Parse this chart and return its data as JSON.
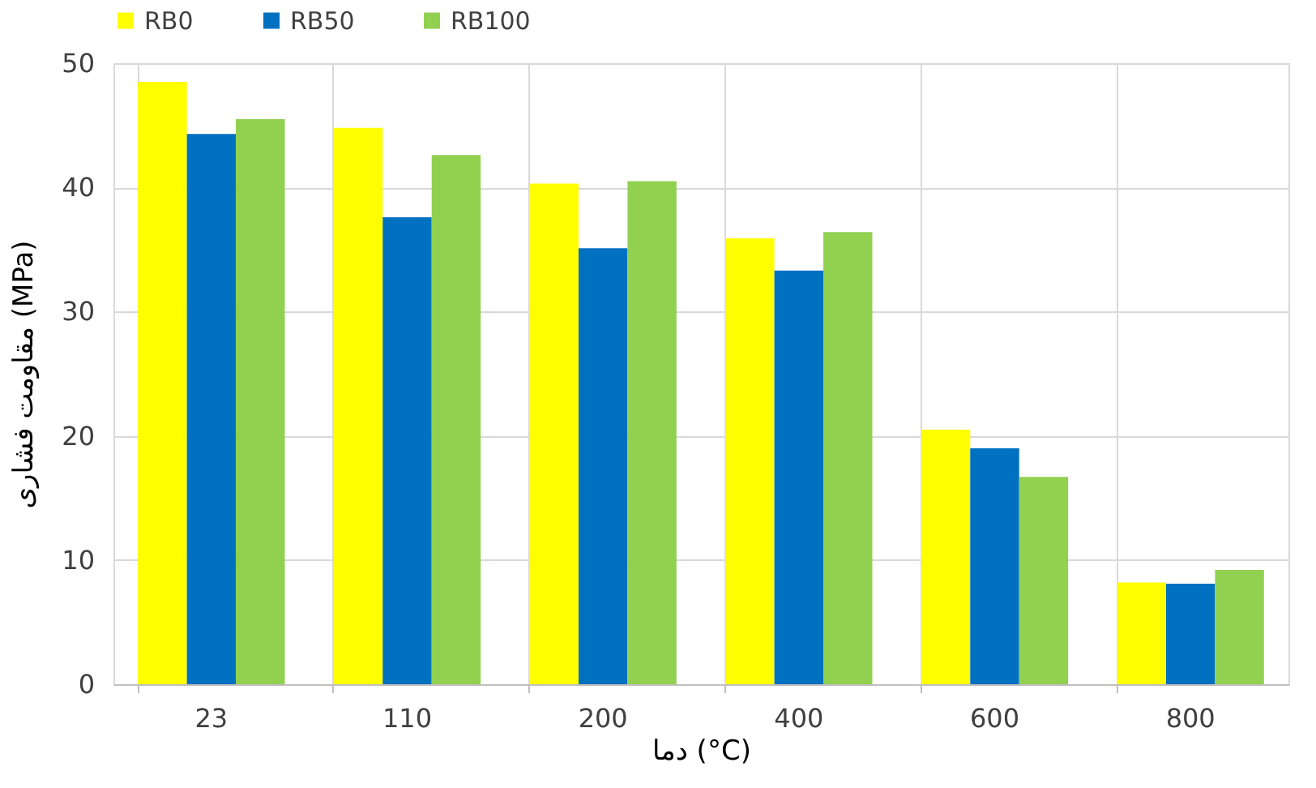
{
  "chart_data": {
    "type": "bar",
    "xlabel": "دما (°C)",
    "ylabel": "مقاومت فشاری (MPa)",
    "categories": [
      "23",
      "110",
      "200",
      "400",
      "600",
      "800"
    ],
    "series": [
      {
        "name": "RB0",
        "color": "#ffff00",
        "values": [
          48.5,
          44.8,
          40.3,
          35.9,
          20.5,
          8.2
        ]
      },
      {
        "name": "RB50",
        "color": "#0070c0",
        "values": [
          44.3,
          37.6,
          35.1,
          33.3,
          19.0,
          8.1
        ]
      },
      {
        "name": "RB100",
        "color": "#92d050",
        "values": [
          45.5,
          42.6,
          40.5,
          36.4,
          16.7,
          9.2
        ]
      }
    ],
    "ylim": [
      0,
      50
    ],
    "yticks": [
      0,
      10,
      20,
      30,
      40,
      50
    ],
    "grid": true,
    "legend": "top"
  }
}
